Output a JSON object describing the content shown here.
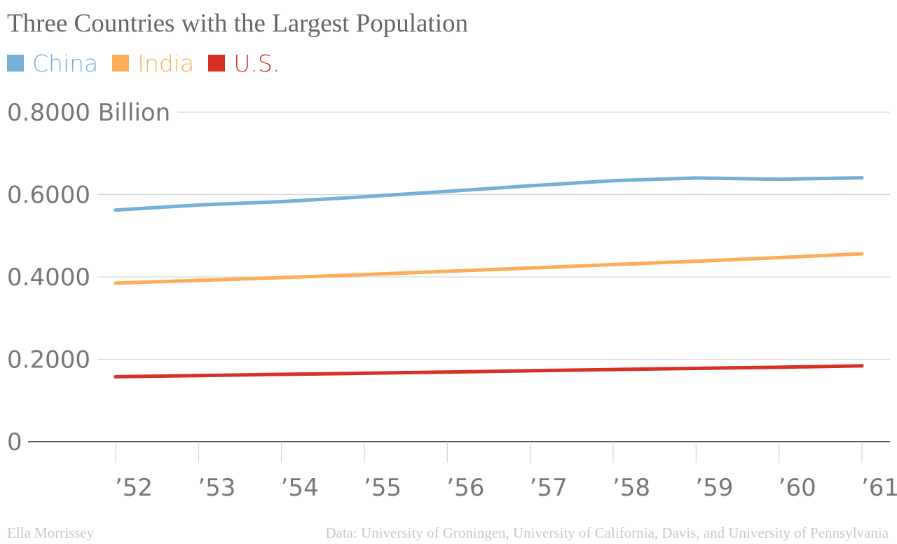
{
  "chart_data": {
    "type": "line",
    "title": "Three Countries with the Largest Population",
    "x": [
      "’52",
      "’53",
      "’54",
      "’55",
      "’56",
      "’57",
      "’58",
      "’59",
      "’60",
      "’61"
    ],
    "y_ticks": [
      "0",
      "0.2000",
      "0.4000",
      "0.6000",
      "0.8000 Billion"
    ],
    "ylim": [
      0,
      0.8
    ],
    "grid": true,
    "legend_position": "top-left",
    "series": [
      {
        "name": "China",
        "color": "#75b0d6",
        "values": [
          0.5623,
          0.5746,
          0.5828,
          0.5946,
          0.6077,
          0.6213,
          0.6336,
          0.6403,
          0.6371,
          0.6407
        ]
      },
      {
        "name": "India",
        "color": "#fdac5a",
        "values": [
          0.3849,
          0.3915,
          0.3982,
          0.4055,
          0.4137,
          0.4216,
          0.4299,
          0.4381,
          0.4469,
          0.4561
        ]
      },
      {
        "name": "U.S.",
        "color": "#d73027",
        "values": [
          0.1576,
          0.1604,
          0.1634,
          0.1661,
          0.169,
          0.1722,
          0.1751,
          0.1779,
          0.1807,
          0.184
        ]
      }
    ]
  },
  "footer": {
    "author": "Ella Morrissey",
    "source": "Data: University of Groningen, University of California, Davis, and University of Pennsylvania"
  }
}
